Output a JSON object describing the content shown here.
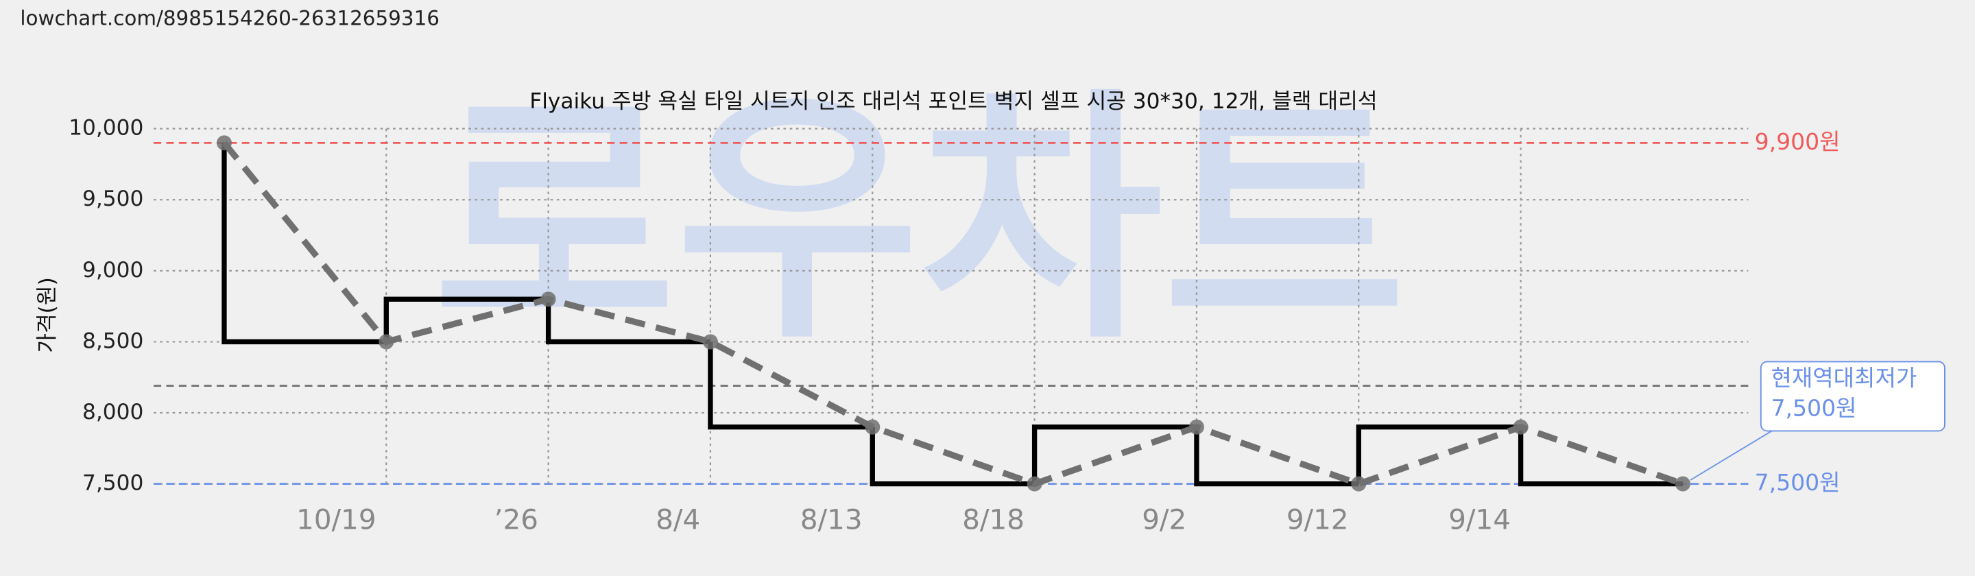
{
  "url": "lowchart.com/8985154260-26312659316",
  "watermark": "로우차트",
  "chart_data": {
    "type": "step-line",
    "title": "Flyaiku 주방 욕실 타일 시트지 인조 대리석 포인트 벽지 셀프 시공 30*30, 12개, 블랙 대리석",
    "ylabel": "가격(원)",
    "categories": [
      null,
      "10/19",
      "’26",
      "8/4",
      "8/13",
      "8/18",
      "9/2",
      "9/12",
      "9/14",
      null
    ],
    "values": [
      9900,
      8500,
      8800,
      8500,
      7900,
      7500,
      7900,
      7500,
      7900,
      7500
    ],
    "ylim": [
      7500,
      10000
    ],
    "yticks": [
      {
        "value": 7500,
        "label": "7,500"
      },
      {
        "value": 8000,
        "label": "8,000"
      },
      {
        "value": 8500,
        "label": "8,500"
      },
      {
        "value": 9000,
        "label": "9,000"
      },
      {
        "value": 9500,
        "label": "9,500"
      },
      {
        "value": 10000,
        "label": "10,000"
      }
    ],
    "grid": true,
    "step_color": "#000000",
    "trend_color": "#707070",
    "reference_lines": [
      {
        "value": 9900,
        "label": "9,900원",
        "color": "#f05a5a"
      },
      {
        "value": 8190,
        "color": "#707070"
      },
      {
        "value": 7500,
        "label": "7,500원",
        "color": "#6a90e8"
      }
    ],
    "annotation": {
      "lines": [
        "현재역대최저가",
        "7,500원"
      ],
      "color": "#6a90e8"
    }
  }
}
